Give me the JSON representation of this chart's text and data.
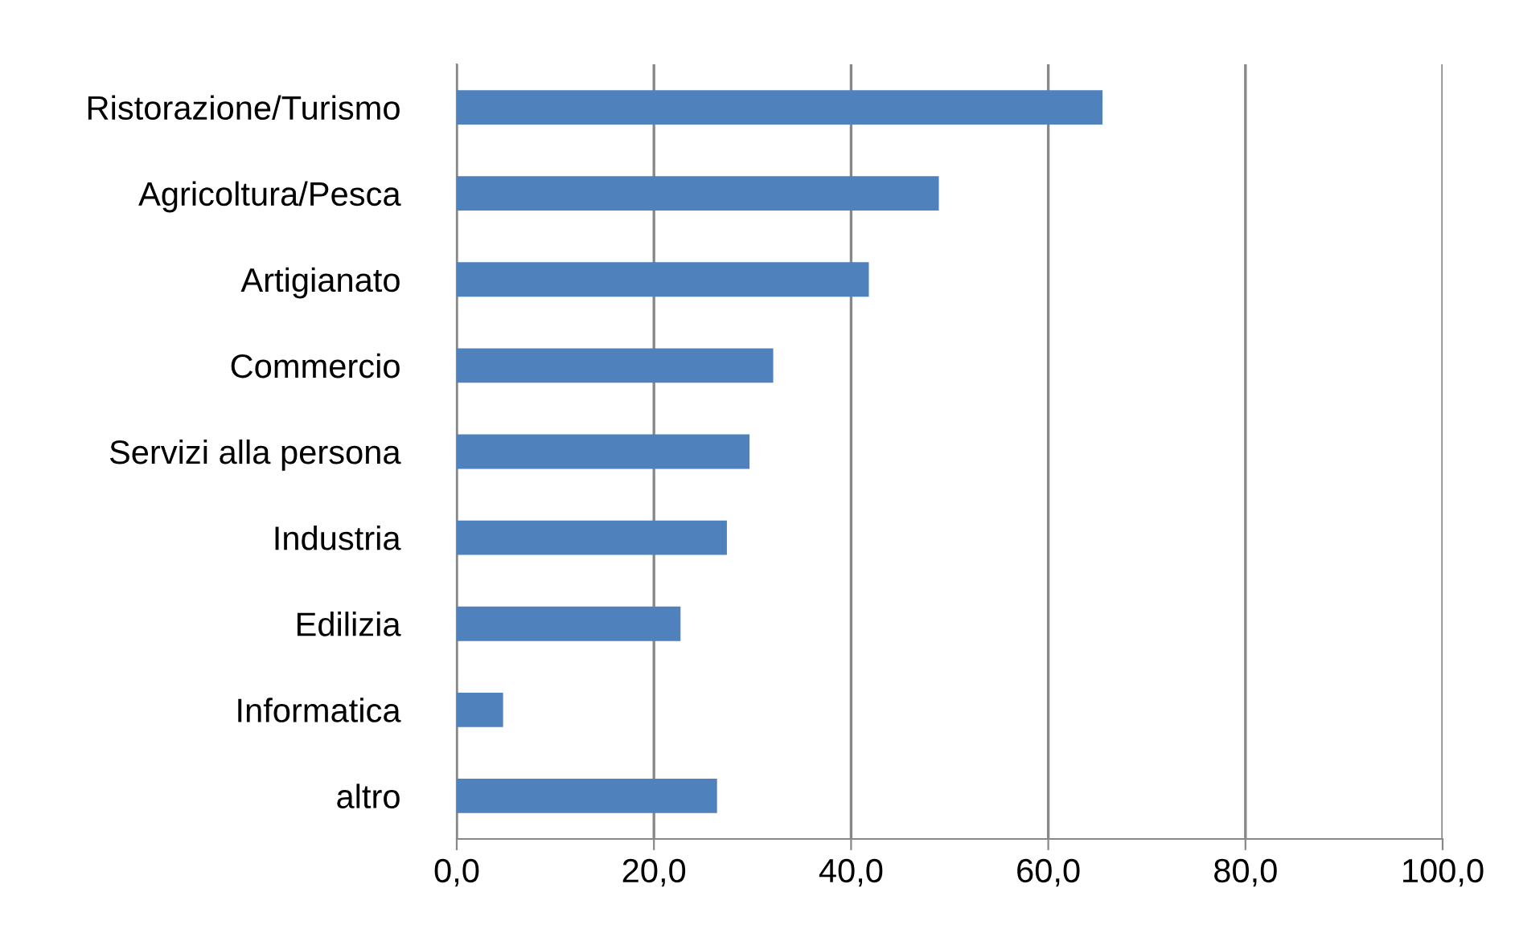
{
  "chart_data": {
    "type": "bar",
    "orientation": "horizontal",
    "categories": [
      "Ristorazione/Turismo",
      "Agricoltura/Pesca",
      "Artigianato",
      "Commercio",
      "Servizi alla persona",
      "Industria",
      "Edilizia",
      "Informatica",
      "altro"
    ],
    "values": [
      65.5,
      48.9,
      41.8,
      32.1,
      29.7,
      27.4,
      22.7,
      4.7,
      26.4
    ],
    "color": "#4f81bd",
    "xlim": [
      0,
      100
    ],
    "xticks": [
      {
        "value": 0,
        "label": "0,0"
      },
      {
        "value": 20,
        "label": "20,0"
      },
      {
        "value": 40,
        "label": "40,0"
      },
      {
        "value": 60,
        "label": "60,0"
      },
      {
        "value": 80,
        "label": "80,0"
      },
      {
        "value": 100,
        "label": "100,0"
      }
    ],
    "grid": "x",
    "legend": false
  }
}
